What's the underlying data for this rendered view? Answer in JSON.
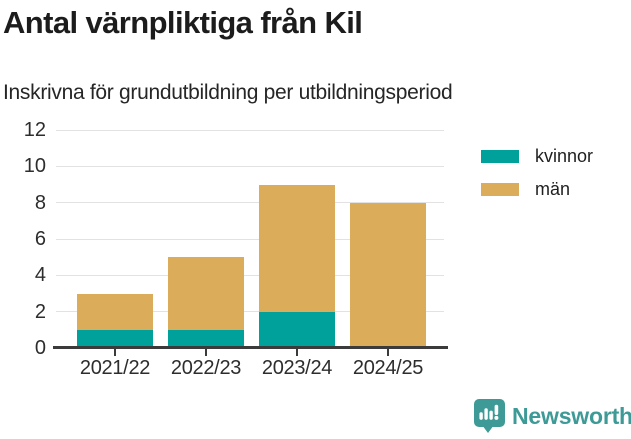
{
  "chart_data": {
    "type": "bar",
    "stacked": true,
    "title": "Antal värnpliktiga från Kil",
    "subtitle": "Inskrivna för grundutbildning per utbildningsperiod",
    "categories": [
      "2021/22",
      "2022/23",
      "2023/24",
      "2024/25"
    ],
    "series": [
      {
        "name": "kvinnor",
        "color": "#00A19A",
        "values": [
          1,
          1,
          2,
          0
        ]
      },
      {
        "name": "män",
        "color": "#DBAD5B",
        "values": [
          2,
          4,
          7,
          8
        ]
      }
    ],
    "stack_totals": [
      3,
      5,
      9,
      8
    ],
    "ylim": [
      0,
      12
    ],
    "yticks": [
      0,
      2,
      4,
      6,
      8,
      10,
      12
    ],
    "grid": "horizontal",
    "grid_color": "#e2e2e2",
    "axis_color": "#3b3b3b",
    "legend_position": "right-top"
  },
  "footer": {
    "brand": "Newsworthy",
    "brand_color": "#3D9A96",
    "logo_icon": "newsworthy-chart-speech-bubble-icon"
  }
}
